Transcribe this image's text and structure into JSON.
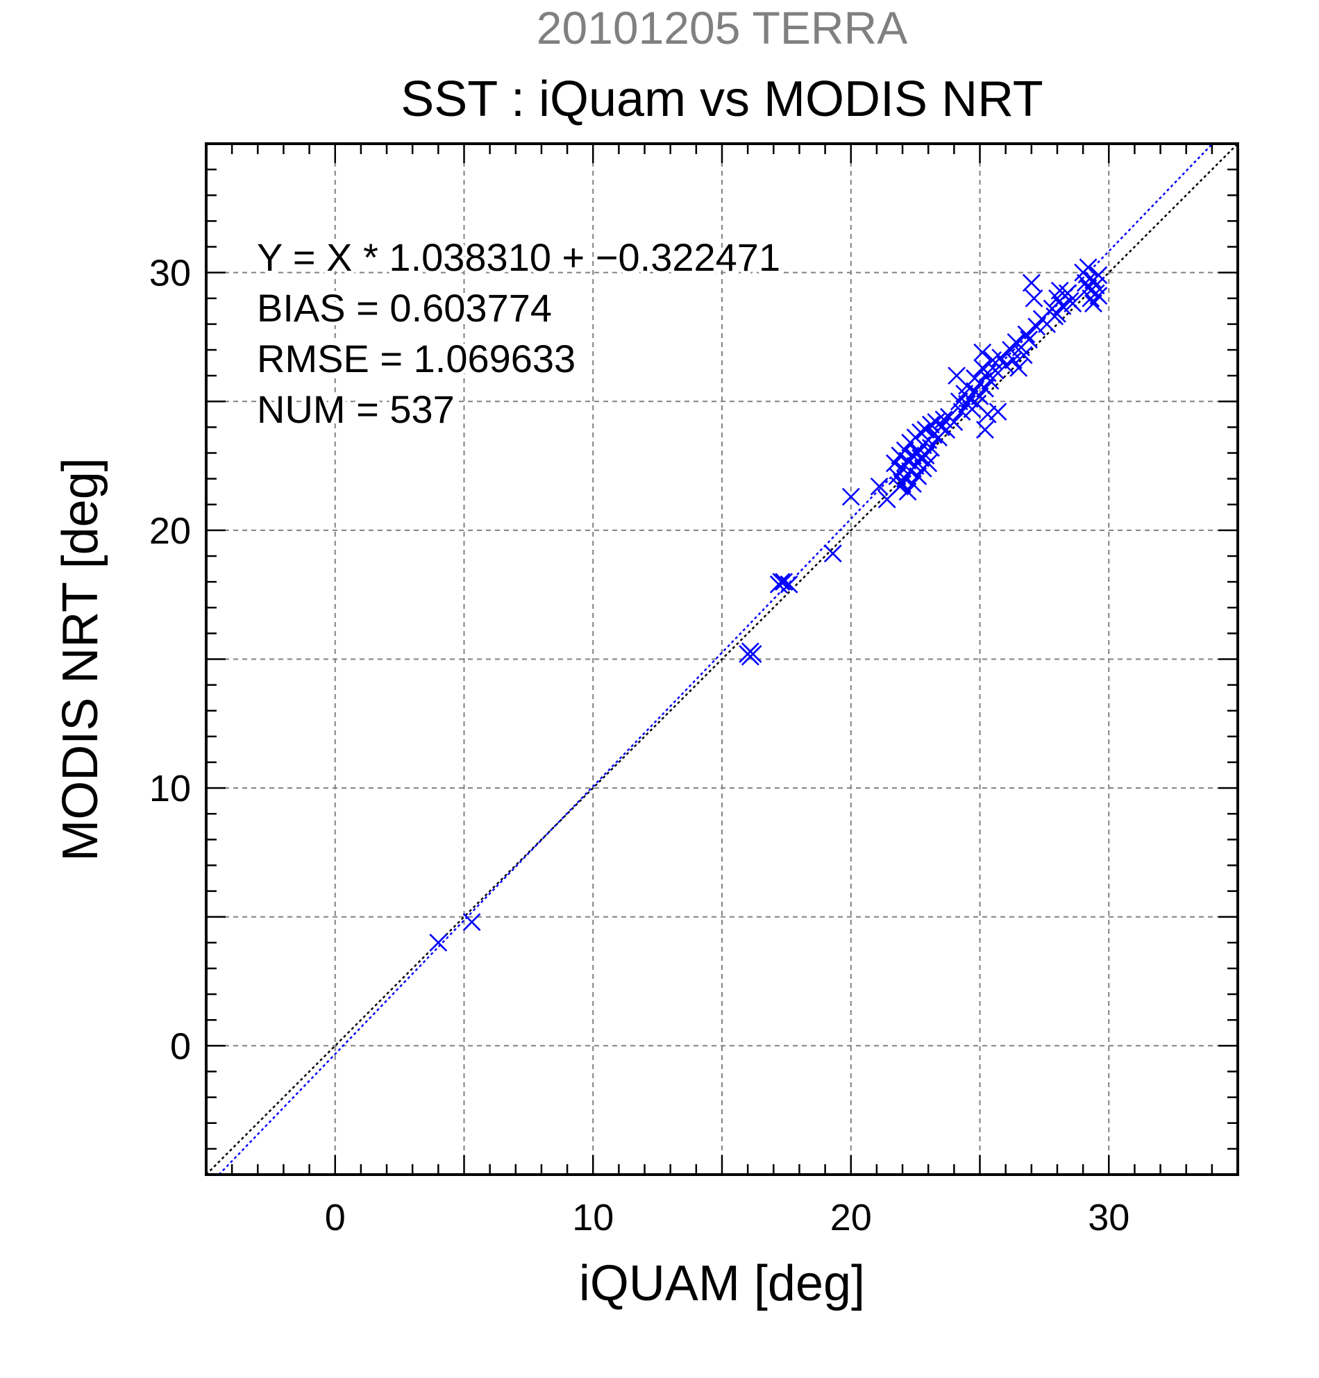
{
  "chart_data": {
    "type": "scatter",
    "suptitle": "20101205 TERRA",
    "title": "SST : iQuam vs MODIS NRT",
    "xlabel": "iQUAM [deg]",
    "ylabel": "MODIS NRT [deg]",
    "xlim": [
      -5,
      35
    ],
    "ylim": [
      -5,
      35
    ],
    "xticks": [
      0,
      10,
      20,
      30
    ],
    "yticks": [
      0,
      10,
      20,
      30
    ],
    "minor_tick_step": 1,
    "grid": true,
    "annotations": [
      "Y = X * 1.038310 + −0.322471",
      "BIAS = 0.603774",
      "RMSE = 1.069633",
      "NUM = 537"
    ],
    "regression": {
      "slope": 1.03831,
      "intercept": -0.322471
    },
    "colors": {
      "points": "#0000ff",
      "fit_line": "#0000ff",
      "identity_line": "#000000",
      "grid": "#808080",
      "suptitle": "#808080",
      "text": "#000000"
    },
    "series": [
      {
        "marker": "x",
        "points": [
          [
            4.0,
            4.0
          ],
          [
            5.3,
            4.8
          ],
          [
            16.0,
            15.2
          ],
          [
            16.1,
            15.1
          ],
          [
            16.2,
            15.2
          ],
          [
            16.1,
            15.3
          ],
          [
            17.2,
            17.9
          ],
          [
            17.4,
            18.0
          ],
          [
            17.6,
            17.9
          ],
          [
            17.3,
            18.0
          ],
          [
            19.3,
            19.1
          ],
          [
            20.0,
            21.3
          ],
          [
            21.1,
            21.7
          ],
          [
            21.4,
            21.2
          ],
          [
            21.7,
            22.6
          ],
          [
            21.8,
            22.1
          ],
          [
            21.9,
            21.7
          ],
          [
            21.9,
            22.9
          ],
          [
            22.0,
            22.4
          ],
          [
            22.0,
            21.8
          ],
          [
            22.1,
            23.1
          ],
          [
            22.1,
            22.0
          ],
          [
            22.2,
            22.7
          ],
          [
            22.2,
            21.5
          ],
          [
            22.3,
            23.4
          ],
          [
            22.3,
            22.3
          ],
          [
            22.4,
            22.9
          ],
          [
            22.4,
            21.8
          ],
          [
            22.5,
            23.6
          ],
          [
            22.5,
            22.5
          ],
          [
            22.6,
            23.0
          ],
          [
            22.6,
            22.1
          ],
          [
            22.7,
            23.8
          ],
          [
            22.7,
            22.8
          ],
          [
            22.8,
            23.3
          ],
          [
            22.8,
            22.4
          ],
          [
            22.9,
            23.9
          ],
          [
            22.9,
            22.9
          ],
          [
            23.0,
            23.5
          ],
          [
            23.0,
            22.6
          ],
          [
            23.1,
            24.1
          ],
          [
            23.1,
            23.2
          ],
          [
            23.2,
            23.7
          ],
          [
            23.3,
            24.2
          ],
          [
            23.4,
            23.6
          ],
          [
            23.5,
            24.0
          ],
          [
            23.6,
            24.3
          ],
          [
            23.7,
            23.9
          ],
          [
            23.8,
            24.4
          ],
          [
            24.0,
            24.2
          ],
          [
            24.1,
            26.0
          ],
          [
            24.2,
            25.0
          ],
          [
            24.3,
            24.6
          ],
          [
            24.4,
            25.3
          ],
          [
            24.5,
            24.9
          ],
          [
            24.5,
            25.6
          ],
          [
            24.6,
            25.1
          ],
          [
            24.7,
            24.7
          ],
          [
            24.8,
            25.4
          ],
          [
            24.8,
            25.9
          ],
          [
            24.9,
            24.9
          ],
          [
            25.0,
            25.7
          ],
          [
            25.0,
            25.2
          ],
          [
            25.1,
            26.9
          ],
          [
            25.1,
            26.3
          ],
          [
            25.2,
            25.5
          ],
          [
            25.2,
            23.9
          ],
          [
            25.3,
            24.5
          ],
          [
            25.3,
            26.1
          ],
          [
            25.4,
            25.8
          ],
          [
            25.5,
            26.6
          ],
          [
            25.6,
            26.2
          ],
          [
            25.7,
            24.6
          ],
          [
            25.8,
            26.7
          ],
          [
            26.0,
            26.4
          ],
          [
            26.2,
            27.0
          ],
          [
            26.3,
            26.6
          ],
          [
            26.4,
            27.3
          ],
          [
            26.5,
            26.3
          ],
          [
            26.6,
            27.1
          ],
          [
            26.7,
            26.8
          ],
          [
            26.8,
            27.6
          ],
          [
            26.9,
            27.4
          ],
          [
            27.0,
            29.6
          ],
          [
            27.1,
            29.0
          ],
          [
            27.2,
            27.9
          ],
          [
            27.4,
            28.2
          ],
          [
            27.6,
            28.0
          ],
          [
            27.8,
            28.6
          ],
          [
            27.9,
            28.3
          ],
          [
            28.0,
            29.0
          ],
          [
            28.0,
            28.4
          ],
          [
            28.1,
            29.3
          ],
          [
            28.2,
            28.7
          ],
          [
            28.3,
            29.1
          ],
          [
            28.4,
            29.2
          ],
          [
            28.5,
            28.9
          ],
          [
            28.6,
            28.8
          ],
          [
            29.0,
            30.0
          ],
          [
            29.1,
            29.6
          ],
          [
            29.2,
            29.4
          ],
          [
            29.2,
            30.2
          ],
          [
            29.3,
            29.0
          ],
          [
            29.4,
            29.7
          ],
          [
            29.4,
            28.8
          ],
          [
            29.5,
            29.2
          ],
          [
            29.5,
            29.5
          ],
          [
            29.6,
            29.9
          ],
          [
            29.6,
            29.1
          ]
        ]
      }
    ]
  }
}
